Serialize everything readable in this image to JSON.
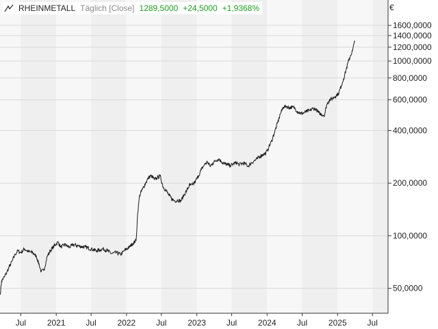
{
  "legend": {
    "name": "RHEINMETALL",
    "period": "Täglich [Close]",
    "last": "1289,5000",
    "change_abs": "+24,5000",
    "change_pct": "+1,9368%"
  },
  "colors": {
    "line": "#1a1a1a",
    "positive": "#1f9e1f",
    "band_dark": "#efefef",
    "band_light": "#f7f7f7",
    "grid": "#d9d9d9"
  },
  "chart_data": {
    "type": "line",
    "title": "RHEINMETALL",
    "scale": "log",
    "currency": "€",
    "xlim": [
      "2020-03-15",
      "2025-09-20"
    ],
    "ylim": [
      36,
      1800
    ],
    "grid": true,
    "shaded_bands": "alternating half-years",
    "x_ticks": [
      {
        "date": "2020-07-01",
        "label": "Jul"
      },
      {
        "date": "2021-01-01",
        "label": "2021"
      },
      {
        "date": "2021-07-01",
        "label": "Jul"
      },
      {
        "date": "2022-01-01",
        "label": "2022"
      },
      {
        "date": "2022-07-01",
        "label": "Jul"
      },
      {
        "date": "2023-01-01",
        "label": "2023"
      },
      {
        "date": "2023-07-01",
        "label": "Jul"
      },
      {
        "date": "2024-01-01",
        "label": "2024"
      },
      {
        "date": "2024-07-01",
        "label": "Jul"
      },
      {
        "date": "2025-01-01",
        "label": "2025"
      },
      {
        "date": "2025-07-01",
        "label": "Jul"
      }
    ],
    "y_ticks": [
      {
        "value": 1600,
        "label": "1600,0000"
      },
      {
        "value": 1400,
        "label": "1400,0000"
      },
      {
        "value": 1200,
        "label": "1200,0000"
      },
      {
        "value": 1000,
        "label": "1000,0000"
      },
      {
        "value": 800,
        "label": "800,0000"
      },
      {
        "value": 600,
        "label": "600,0000"
      },
      {
        "value": 400,
        "label": "400,0000"
      },
      {
        "value": 200,
        "label": "200,0000"
      },
      {
        "value": 100,
        "label": "100,0000"
      },
      {
        "value": 50,
        "label": "50,0000"
      }
    ],
    "series": [
      {
        "points": [
          [
            "2020-03-16",
            46
          ],
          [
            "2020-03-23",
            55
          ],
          [
            "2020-04-06",
            58
          ],
          [
            "2020-04-20",
            62
          ],
          [
            "2020-05-04",
            67
          ],
          [
            "2020-05-18",
            72
          ],
          [
            "2020-06-01",
            78
          ],
          [
            "2020-06-15",
            82
          ],
          [
            "2020-07-01",
            80
          ],
          [
            "2020-07-20",
            84
          ],
          [
            "2020-08-10",
            81
          ],
          [
            "2020-09-01",
            80
          ],
          [
            "2020-09-20",
            76
          ],
          [
            "2020-10-05",
            68
          ],
          [
            "2020-10-15",
            62
          ],
          [
            "2020-10-30",
            64
          ],
          [
            "2020-11-15",
            76
          ],
          [
            "2020-12-01",
            82
          ],
          [
            "2020-12-20",
            87
          ],
          [
            "2021-01-10",
            92
          ],
          [
            "2021-01-25",
            86
          ],
          [
            "2021-02-15",
            89
          ],
          [
            "2021-03-10",
            86
          ],
          [
            "2021-04-01",
            89
          ],
          [
            "2021-05-01",
            87
          ],
          [
            "2021-06-01",
            86
          ],
          [
            "2021-07-01",
            84
          ],
          [
            "2021-08-01",
            82
          ],
          [
            "2021-09-01",
            84
          ],
          [
            "2021-09-25",
            82
          ],
          [
            "2021-10-15",
            79
          ],
          [
            "2021-11-10",
            80
          ],
          [
            "2021-12-01",
            78
          ],
          [
            "2021-12-20",
            82
          ],
          [
            "2022-01-15",
            86
          ],
          [
            "2022-02-01",
            90
          ],
          [
            "2022-02-20",
            94
          ],
          [
            "2022-02-28",
            135
          ],
          [
            "2022-03-10",
            170
          ],
          [
            "2022-03-25",
            185
          ],
          [
            "2022-04-10",
            200
          ],
          [
            "2022-04-25",
            215
          ],
          [
            "2022-05-10",
            220
          ],
          [
            "2022-05-25",
            210
          ],
          [
            "2022-06-10",
            215
          ],
          [
            "2022-06-25",
            220
          ],
          [
            "2022-07-10",
            190
          ],
          [
            "2022-07-25",
            182
          ],
          [
            "2022-08-10",
            170
          ],
          [
            "2022-08-25",
            162
          ],
          [
            "2022-09-10",
            158
          ],
          [
            "2022-09-25",
            160
          ],
          [
            "2022-10-10",
            158
          ],
          [
            "2022-10-25",
            170
          ],
          [
            "2022-11-10",
            182
          ],
          [
            "2022-11-25",
            195
          ],
          [
            "2022-12-10",
            195
          ],
          [
            "2022-12-25",
            205
          ],
          [
            "2023-01-10",
            220
          ],
          [
            "2023-01-25",
            240
          ],
          [
            "2023-02-10",
            255
          ],
          [
            "2023-02-25",
            265
          ],
          [
            "2023-03-10",
            250
          ],
          [
            "2023-03-25",
            260
          ],
          [
            "2023-04-10",
            270
          ],
          [
            "2023-04-25",
            275
          ],
          [
            "2023-05-10",
            265
          ],
          [
            "2023-05-25",
            258
          ],
          [
            "2023-06-10",
            255
          ],
          [
            "2023-06-25",
            252
          ],
          [
            "2023-07-10",
            258
          ],
          [
            "2023-07-25",
            262
          ],
          [
            "2023-08-10",
            255
          ],
          [
            "2023-08-25",
            260
          ],
          [
            "2023-09-10",
            258
          ],
          [
            "2023-09-25",
            250
          ],
          [
            "2023-10-10",
            260
          ],
          [
            "2023-10-25",
            268
          ],
          [
            "2023-11-10",
            275
          ],
          [
            "2023-11-25",
            285
          ],
          [
            "2023-12-10",
            292
          ],
          [
            "2023-12-25",
            296
          ],
          [
            "2024-01-10",
            320
          ],
          [
            "2024-01-25",
            350
          ],
          [
            "2024-02-10",
            395
          ],
          [
            "2024-02-25",
            445
          ],
          [
            "2024-03-10",
            500
          ],
          [
            "2024-03-25",
            545
          ],
          [
            "2024-04-10",
            550
          ],
          [
            "2024-04-25",
            540
          ],
          [
            "2024-05-10",
            545
          ],
          [
            "2024-05-25",
            535
          ],
          [
            "2024-06-10",
            510
          ],
          [
            "2024-06-25",
            500
          ],
          [
            "2024-07-10",
            505
          ],
          [
            "2024-07-25",
            515
          ],
          [
            "2024-08-10",
            520
          ],
          [
            "2024-08-25",
            535
          ],
          [
            "2024-09-10",
            530
          ],
          [
            "2024-09-25",
            505
          ],
          [
            "2024-10-10",
            495
          ],
          [
            "2024-10-25",
            490
          ],
          [
            "2024-11-05",
            560
          ],
          [
            "2024-11-20",
            600
          ],
          [
            "2024-12-05",
            610
          ],
          [
            "2024-12-20",
            630
          ],
          [
            "2025-01-05",
            650
          ],
          [
            "2025-01-20",
            720
          ],
          [
            "2025-02-01",
            790
          ],
          [
            "2025-02-15",
            900
          ],
          [
            "2025-02-28",
            1010
          ],
          [
            "2025-03-10",
            1080
          ],
          [
            "2025-03-20",
            1150
          ],
          [
            "2025-03-28",
            1265
          ],
          [
            "2025-04-01",
            1289.5
          ]
        ]
      }
    ]
  }
}
